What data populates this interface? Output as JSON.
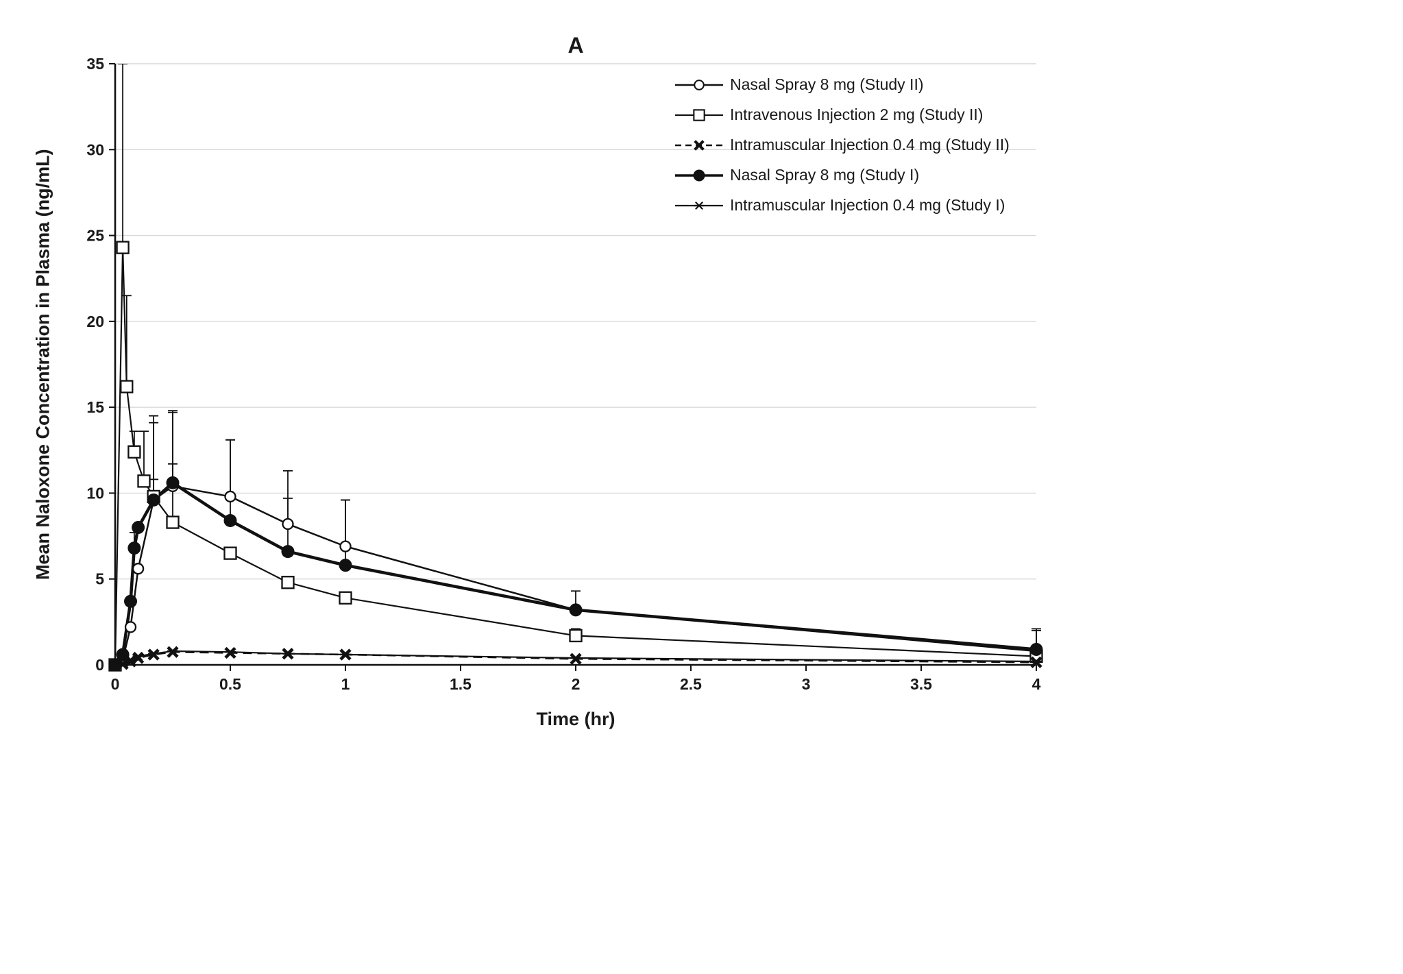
{
  "chart_data": {
    "type": "line",
    "title": "A",
    "xlabel": "Time (hr)",
    "ylabel": "Mean Naloxone Concentration in Plasma (ng/mL)",
    "xlim": [
      0,
      4
    ],
    "ylim": [
      0,
      35
    ],
    "xticks": [
      0,
      0.5,
      1,
      1.5,
      2,
      2.5,
      3,
      3.5,
      4
    ],
    "xtick_labels": [
      "0",
      "0.5",
      "1",
      "1.5",
      "2",
      "2.5",
      "3",
      "3.5",
      "4"
    ],
    "yticks": [
      0,
      5,
      10,
      15,
      20,
      25,
      30,
      35
    ],
    "ytick_labels": [
      "0",
      "5",
      "10",
      "15",
      "20",
      "25",
      "30",
      "35"
    ],
    "grid": "horizontal",
    "grid_color": "#d9d9d9",
    "axis_color": "#111111",
    "line_color": "#111111",
    "legend_position": "top-right",
    "series": [
      {
        "name": "Nasal Spray 8 mg (Study II)",
        "marker": "open-circle",
        "line_style": "solid",
        "line_width": 2.5,
        "x": [
          0,
          0.033,
          0.067,
          0.1,
          0.167,
          0.25,
          0.5,
          0.75,
          1,
          2,
          4
        ],
        "y": [
          0,
          0.3,
          2.2,
          5.6,
          9.6,
          10.4,
          9.8,
          8.2,
          6.9,
          3.2,
          0.8
        ],
        "err_up": [
          0,
          0,
          0,
          0,
          4.9,
          4.4,
          3.3,
          3.1,
          2.7,
          0,
          1.2
        ]
      },
      {
        "name": "Intravenous Injection 2 mg (Study II)",
        "marker": "open-square",
        "line_style": "solid",
        "line_width": 2.2,
        "x": [
          0,
          0.033,
          0.05,
          0.083,
          0.125,
          0.167,
          0.25,
          0.5,
          0.75,
          1,
          2,
          4
        ],
        "y": [
          0,
          24.3,
          16.2,
          12.4,
          10.7,
          9.8,
          8.3,
          6.5,
          4.8,
          3.9,
          1.7,
          0.5
        ],
        "err_up": [
          0,
          10.7,
          5.3,
          1.2,
          2.9,
          1.0,
          3.4,
          0,
          0,
          0,
          0.4,
          0
        ]
      },
      {
        "name": "Intramuscular Injection 0.4 mg (Study II)",
        "marker": "bold-x",
        "line_style": "dashed",
        "line_width": 2.6,
        "x": [
          0,
          0.033,
          0.067,
          0.1,
          0.167,
          0.25,
          0.5,
          0.75,
          1,
          2,
          4
        ],
        "y": [
          0,
          0.05,
          0.2,
          0.4,
          0.6,
          0.75,
          0.7,
          0.65,
          0.6,
          0.35,
          0.15
        ],
        "err_up": [
          0,
          0,
          0,
          0,
          0,
          0,
          0,
          0,
          0,
          0,
          0
        ]
      },
      {
        "name": "Nasal Spray 8 mg (Study I)",
        "marker": "filled-circle",
        "line_style": "solid",
        "line_width": 4.5,
        "x": [
          0,
          0.033,
          0.067,
          0.083,
          0.1,
          0.167,
          0.25,
          0.5,
          0.75,
          1,
          2,
          4
        ],
        "y": [
          0,
          0.6,
          3.7,
          6.8,
          8.0,
          9.6,
          10.6,
          8.4,
          6.6,
          5.8,
          3.2,
          0.9
        ],
        "err_up": [
          0,
          0,
          0,
          0.9,
          0,
          4.5,
          4.1,
          4.7,
          3.1,
          3.8,
          1.1,
          1.2
        ]
      },
      {
        "name": "Intramuscular Injection 0.4 mg (Study I)",
        "marker": "asterisk",
        "line_style": "solid",
        "line_width": 2.2,
        "x": [
          0,
          0.033,
          0.067,
          0.1,
          0.167,
          0.25,
          0.5,
          0.75,
          1,
          2,
          4
        ],
        "y": [
          0,
          0.1,
          0.3,
          0.5,
          0.65,
          0.8,
          0.75,
          0.65,
          0.6,
          0.4,
          0.2
        ],
        "err_up": [
          0,
          0,
          0,
          0,
          0,
          0,
          0,
          0,
          0,
          0,
          0
        ]
      }
    ]
  }
}
